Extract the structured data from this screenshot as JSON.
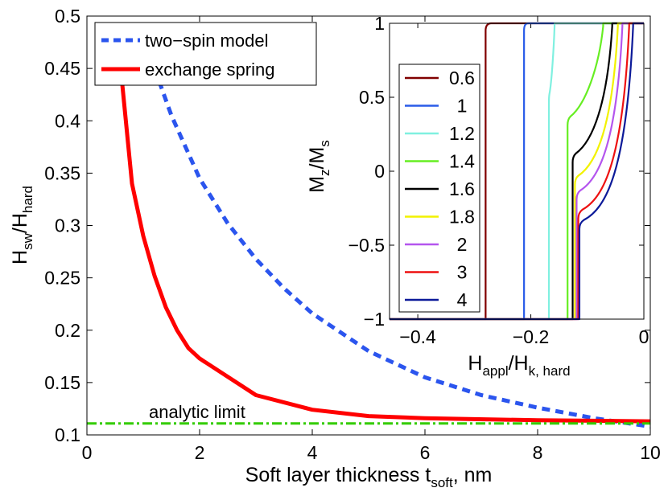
{
  "chart_data": [
    {
      "type": "line",
      "id": "main",
      "xlabel": "Soft layer thickness t",
      "xlabel_sub": "soft",
      "xlabel_suffix": ", nm",
      "ylabel": "H",
      "ylabel_sub1": "sw",
      "ylabel_mid": "/H",
      "ylabel_sub2": "hard",
      "xlim": [
        0,
        10
      ],
      "ylim": [
        0.1,
        0.5
      ],
      "xticks": [
        0,
        2,
        4,
        6,
        8,
        10
      ],
      "xtick_labels": [
        "0",
        "2",
        "4",
        "6",
        "8",
        "10"
      ],
      "yticks": [
        0.1,
        0.15,
        0.2,
        0.25,
        0.3,
        0.35,
        0.4,
        0.45,
        0.5
      ],
      "ytick_labels": [
        "0.1",
        "0.15",
        "0.2",
        "0.25",
        "0.3",
        "0.35",
        "0.4",
        "0.45",
        "0.5"
      ],
      "legend_position": "top-left",
      "series": [
        {
          "name": "two−spin model",
          "color": "#2b55ee",
          "style": "dashed",
          "x": [
            1.2,
            1.5,
            2,
            2.5,
            3,
            3.5,
            4,
            5,
            6,
            7,
            8,
            9,
            10
          ],
          "y": [
            0.45,
            0.405,
            0.345,
            0.302,
            0.268,
            0.24,
            0.216,
            0.18,
            0.155,
            0.138,
            0.126,
            0.116,
            0.108
          ]
        },
        {
          "name": "exchange spring",
          "color": "#ff0000",
          "style": "solid",
          "x": [
            0.6,
            0.8,
            1,
            1.2,
            1.4,
            1.6,
            1.8,
            2,
            3,
            4,
            5,
            6,
            8,
            10
          ],
          "y": [
            0.45,
            0.34,
            0.29,
            0.252,
            0.222,
            0.2,
            0.183,
            0.173,
            0.138,
            0.124,
            0.118,
            0.116,
            0.114,
            0.113
          ]
        },
        {
          "name": "analytic limit",
          "color": "#33cc00",
          "style": "dashdot",
          "x": [
            0,
            10
          ],
          "y": [
            0.111,
            0.111
          ]
        }
      ],
      "annotations": [
        {
          "text": "analytic limit",
          "x": 1.1,
          "y": 0.116
        }
      ]
    },
    {
      "type": "line",
      "id": "inset",
      "xlabel": "H",
      "xlabel_sub1": "appl",
      "xlabel_mid": "/H",
      "xlabel_sub2": "k, hard",
      "ylabel": "M",
      "ylabel_sub1": "z",
      "ylabel_mid": "/M",
      "ylabel_sub2": "s",
      "xlim": [
        -0.45,
        0
      ],
      "ylim": [
        -1,
        1
      ],
      "xticks": [
        -0.4,
        -0.2,
        0
      ],
      "xtick_labels": [
        "−0.4",
        "−0.2",
        "0"
      ],
      "yticks": [
        -1,
        -0.5,
        0,
        0.5,
        1
      ],
      "ytick_labels": [
        "−1",
        "−0.5",
        "0",
        "0.5",
        "1"
      ],
      "legend_position": "left",
      "series": [
        {
          "name": "0.6",
          "color": "#800000",
          "h_low": -0.28,
          "h_high": -0.27,
          "knee": null
        },
        {
          "name": "1",
          "color": "#2a5ce8",
          "h_low": -0.212,
          "h_high": -0.205,
          "knee": null
        },
        {
          "name": "1.2",
          "color": "#80f0e0",
          "h_low": -0.168,
          "h_high": -0.158,
          "knee": 0.5
        },
        {
          "name": "1.4",
          "color": "#66ee22",
          "h_low": -0.135,
          "h_high": -0.072,
          "knee": 0.35
        },
        {
          "name": "1.6",
          "color": "#000000",
          "h_low": -0.126,
          "h_high": -0.056,
          "knee": 0.1
        },
        {
          "name": "1.8",
          "color": "#f2f200",
          "h_low": -0.122,
          "h_high": -0.046,
          "knee": -0.05
        },
        {
          "name": "2",
          "color": "#b455ee",
          "h_low": -0.119,
          "h_high": -0.038,
          "knee": -0.15
        },
        {
          "name": "3",
          "color": "#ee1111",
          "h_low": -0.116,
          "h_high": -0.026,
          "knee": -0.28
        },
        {
          "name": "4",
          "color": "#0c1a99",
          "h_low": -0.114,
          "h_high": -0.019,
          "knee": -0.35
        }
      ]
    }
  ]
}
